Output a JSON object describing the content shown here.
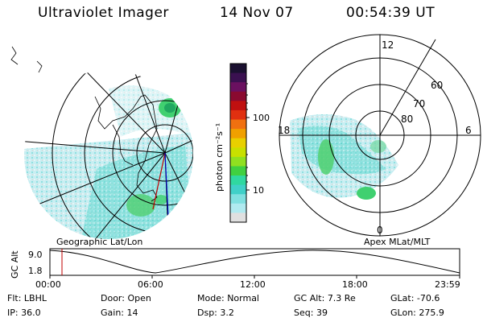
{
  "header": {
    "instrument": "Ultraviolet Imager",
    "date": "14 Nov 07",
    "time": "00:54:39 UT"
  },
  "colorbar": {
    "unit_label": "photon cm⁻²s⁻¹",
    "ticks": [
      "100",
      "10"
    ],
    "colors": [
      "#1a1030",
      "#3a1050",
      "#6a1060",
      "#8a0a30",
      "#c01010",
      "#e03010",
      "#f07010",
      "#f0a000",
      "#e8d000",
      "#c8e000",
      "#90e020",
      "#40d040",
      "#30d8a0",
      "#40d0c8",
      "#80e0e0",
      "#b0eaf0",
      "#e0e0e0"
    ]
  },
  "geo_panel": {
    "caption": "Geographic Lat/Lon"
  },
  "mag_panel": {
    "caption": "Apex MLat/MLT",
    "lat_labels": [
      "60",
      "70",
      "80"
    ],
    "mlt_labels": [
      "12",
      "18",
      "6",
      "0"
    ]
  },
  "altitude_plot": {
    "ylabel": "GC Alt",
    "yticks": [
      "9.0",
      "1.8"
    ],
    "xticks": [
      "00:00",
      "06:00",
      "12:00",
      "18:00",
      "23:59"
    ]
  },
  "info": {
    "row1": [
      {
        "key": "Flt:",
        "value": "LBHL"
      },
      {
        "key": "Door:",
        "value": "Open"
      },
      {
        "key": "Mode:",
        "value": "Normal"
      },
      {
        "key": "GC Alt:",
        "value": "7.3 Re"
      },
      {
        "key": "GLat:",
        "value": "-70.6"
      }
    ],
    "row2": [
      {
        "key": "IP:",
        "value": "36.0"
      },
      {
        "key": "Gain:",
        "value": "14"
      },
      {
        "key": "Dsp:",
        "value": "3.2"
      },
      {
        "key": "Seq:",
        "value": "39"
      },
      {
        "key": "GLon:",
        "value": "275.9"
      }
    ]
  }
}
